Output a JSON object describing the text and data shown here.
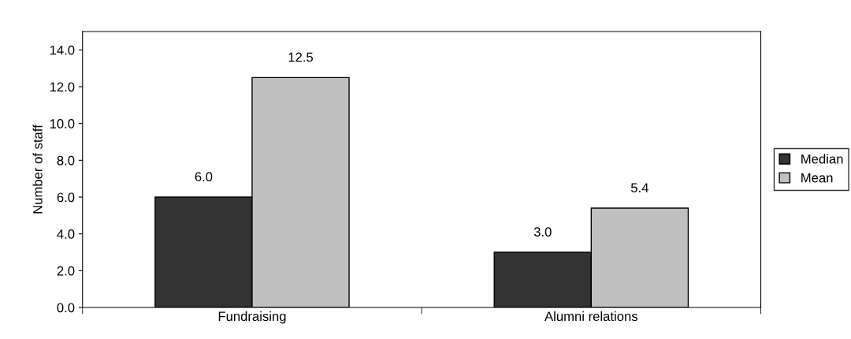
{
  "chart_data": {
    "type": "bar",
    "ylabel": "Number of staff",
    "categories": [
      "Fundraising",
      "Alumni relations"
    ],
    "series": [
      {
        "name": "Median",
        "color": "#333333",
        "values": [
          6.0,
          3.0
        ],
        "value_labels": [
          "6.0",
          "3.0"
        ]
      },
      {
        "name": "Mean",
        "color": "#c0c0c0",
        "values": [
          12.5,
          5.4
        ],
        "value_labels": [
          "12.5",
          "5.4"
        ]
      }
    ],
    "ylim": [
      0,
      15
    ],
    "yticks": [
      {
        "value": 0,
        "label": "0.0"
      },
      {
        "value": 2,
        "label": "2.0"
      },
      {
        "value": 4,
        "label": "4.0"
      },
      {
        "value": 6,
        "label": "6.0"
      },
      {
        "value": 8,
        "label": "8.0"
      },
      {
        "value": 10,
        "label": "10.0"
      },
      {
        "value": 12,
        "label": "12.0"
      },
      {
        "value": 14,
        "label": "14.0"
      }
    ],
    "legend": "right",
    "grid": false
  }
}
